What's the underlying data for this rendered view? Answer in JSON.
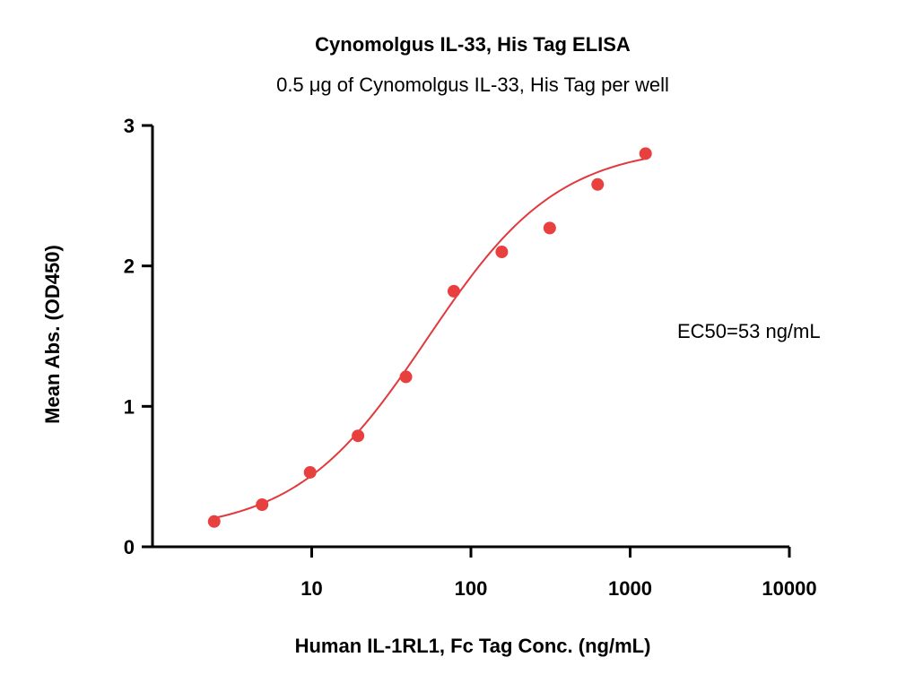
{
  "chart_data": {
    "type": "scatter",
    "title": "Cynomolgus IL-33, His Tag ELISA",
    "subtitle": "0.5 μg of Cynomolgus IL-33, His Tag per well",
    "xlabel": "Human IL-1RL1, Fc Tag Conc. (ng/mL)",
    "ylabel": "Mean Abs. (OD450)",
    "x_scale": "log",
    "xlim": [
      1,
      10000
    ],
    "ylim": [
      0,
      3
    ],
    "x_ticks": [
      10,
      100,
      1000,
      10000
    ],
    "x_tick_labels": [
      "10",
      "100",
      "1000",
      "10000"
    ],
    "y_ticks": [
      0,
      1,
      2,
      3
    ],
    "y_tick_labels": [
      "0",
      "1",
      "2",
      "3"
    ],
    "grid": false,
    "series": [
      {
        "color": "#e8403f",
        "x": [
          2.44,
          4.88,
          9.77,
          19.53,
          39.06,
          78.13,
          156.25,
          312.5,
          625,
          1250
        ],
        "y": [
          0.18,
          0.3,
          0.53,
          0.79,
          1.21,
          1.82,
          2.1,
          2.27,
          2.58,
          2.8
        ]
      }
    ],
    "fit": {
      "model": "4PL",
      "bottom": 0.1,
      "top": 2.86,
      "ec50": 53,
      "hill": 1.05,
      "color": "#e0393e"
    },
    "annotation": "EC50=53 ng/mL"
  }
}
